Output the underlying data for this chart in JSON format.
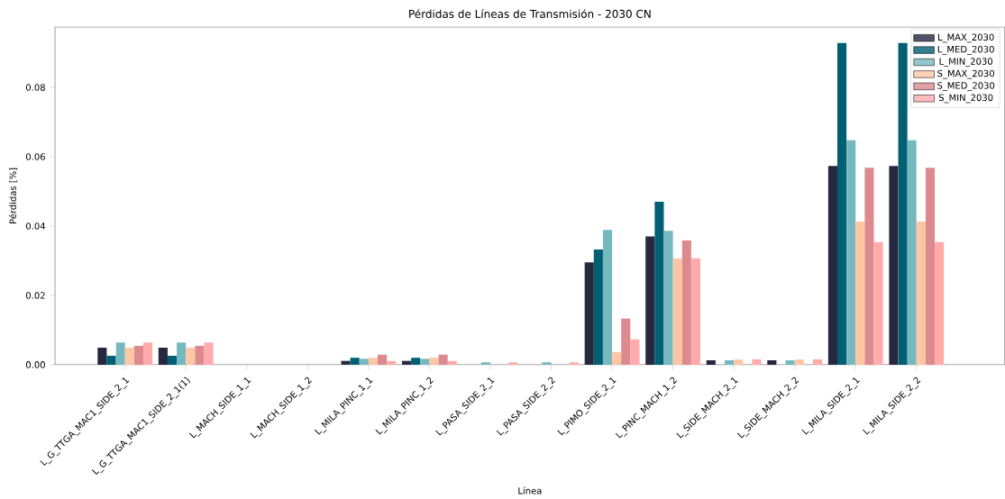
{
  "chart_data": {
    "type": "bar",
    "title": "Pérdidas de Líneas de Transmisión - 2030 CN",
    "xlabel": "Línea",
    "ylabel": "Pérdidas [%]",
    "categories": [
      "L_G_TTGA_MAC1_SIDE_2_1",
      "L_G_TTGA_MAC1_SIDE_2_1(1)",
      "L_MACH_SIDE_1_1",
      "L_MACH_SIDE_1_2",
      "L_MILA_PINC_1_1",
      "L_MILA_PINC_1_2",
      "L_PASA_SIDE_2_1",
      "L_PASA_SIDE_2_2",
      "L_PIMO_SIDE_2_1",
      "L_PINC_MACH_1_2",
      "L_SIDE_MACH_2_1",
      "L_SIDE_MACH_2_2",
      "L_MILA_SIDE_2_1",
      "L_MILA_SIDE_2_2"
    ],
    "series": [
      {
        "name": "L_MAX_2030",
        "color": "#262840",
        "values": [
          0.0049,
          0.0049,
          0,
          0,
          0.0011,
          0.0011,
          0,
          0,
          0.0295,
          0.037,
          0.0013,
          0.0013,
          0.0573,
          0.0573
        ]
      },
      {
        "name": "L_MED_2030",
        "color": "#005f73",
        "values": [
          0.0026,
          0.0026,
          0,
          0,
          0.002,
          0.002,
          0,
          0,
          0.0332,
          0.047,
          0,
          0,
          0.0928,
          0.0928
        ]
      },
      {
        "name": "L_MIN_2030",
        "color": "#75b9be",
        "values": [
          0.0064,
          0.0064,
          0,
          0,
          0.0017,
          0.0017,
          0.0007,
          0.0007,
          0.0389,
          0.0386,
          0.0013,
          0.0013,
          0.0648,
          0.0648
        ]
      },
      {
        "name": "S_MAX_2030",
        "color": "#ffc6a5",
        "values": [
          0.0049,
          0.0049,
          0,
          0,
          0.002,
          0.002,
          0,
          0,
          0.0036,
          0.0307,
          0.0015,
          0.0015,
          0.0413,
          0.0413
        ]
      },
      {
        "name": "S_MED_2030",
        "color": "#dc8a8e",
        "values": [
          0.0054,
          0.0054,
          0,
          0,
          0.0029,
          0.0029,
          0,
          0,
          0.0133,
          0.0358,
          0,
          0,
          0.0568,
          0.0568
        ]
      },
      {
        "name": "S_MIN_2030",
        "color": "#ffabab",
        "values": [
          0.0064,
          0.0064,
          0,
          0,
          0.0011,
          0.0011,
          0.0007,
          0.0007,
          0.0073,
          0.0307,
          0.0015,
          0.0015,
          0.0354,
          0.0354
        ]
      }
    ],
    "ylim": [
      0,
      0.0974
    ],
    "yticks": [
      {
        "value": 0,
        "label": "0.00"
      },
      {
        "value": 0.02,
        "label": "0.02"
      },
      {
        "value": 0.04,
        "label": "0.04"
      },
      {
        "value": 0.06,
        "label": "0.06"
      },
      {
        "value": 0.08,
        "label": "0.08"
      }
    ],
    "legend": "top right"
  }
}
